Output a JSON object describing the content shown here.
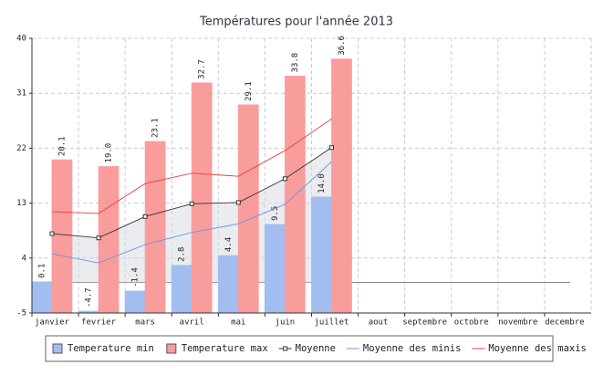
{
  "chart_data": {
    "type": "bar",
    "title": "Températures pour l'année 2013",
    "categories": [
      "janvier",
      "fevrier",
      "mars",
      "avril",
      "mai",
      "juin",
      "juillet",
      "aout",
      "septembre",
      "octobre",
      "novembre",
      "decembre"
    ],
    "series": [
      {
        "name": "Temperature min",
        "type": "bar",
        "color": "#a3bdf0",
        "values": [
          0.1,
          -4.7,
          -1.4,
          2.8,
          4.4,
          9.5,
          14.0,
          null,
          null,
          null,
          null,
          null
        ],
        "value_labels": [
          "0.1",
          "-4.7",
          "-1.4",
          "2.8",
          "4.4",
          "9.5",
          "14.0",
          null,
          null,
          null,
          null,
          null
        ]
      },
      {
        "name": "Temperature max",
        "type": "bar",
        "color": "#f99c9c",
        "values": [
          20.1,
          19.0,
          23.1,
          32.7,
          29.1,
          33.8,
          36.6,
          null,
          null,
          null,
          null,
          null
        ],
        "value_labels": [
          "20.1",
          "19.0",
          "23.1",
          "32.7",
          "29.1",
          "33.8",
          "36.6",
          null,
          null,
          null,
          null,
          null
        ]
      },
      {
        "name": "Moyenne",
        "type": "line",
        "color": "#333333",
        "marker": "square",
        "area": true,
        "values": [
          8.0,
          7.3,
          10.8,
          12.9,
          13.1,
          17.0,
          22.1,
          null,
          null,
          null,
          null,
          null
        ]
      },
      {
        "name": "Moyenne des minis",
        "type": "line",
        "color": "#6a96e8",
        "values": [
          4.7,
          3.2,
          6.2,
          8.2,
          9.6,
          12.8,
          19.8,
          null,
          null,
          null,
          null,
          null
        ]
      },
      {
        "name": "Moyenne des maxis",
        "type": "line",
        "color": "#e84040",
        "values": [
          11.6,
          11.3,
          16.2,
          17.9,
          17.4,
          21.6,
          26.8,
          null,
          null,
          null,
          null,
          null
        ]
      }
    ],
    "ylim": [
      -5,
      40
    ],
    "yticks": [
      -5,
      4,
      13,
      22,
      31,
      40
    ],
    "grid": true,
    "legend": "bottom"
  }
}
